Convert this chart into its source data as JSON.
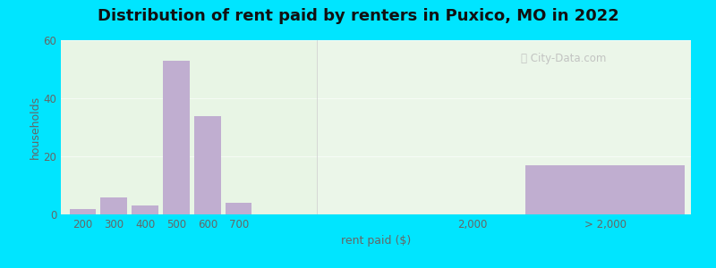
{
  "title": "Distribution of rent paid by renters in Puxico, MO in 2022",
  "xlabel": "rent paid ($)",
  "ylabel": "households",
  "bar_color": "#c0aed0",
  "outer_bg": "#00e5ff",
  "ylim": [
    0,
    60
  ],
  "yticks": [
    0,
    20,
    40,
    60
  ],
  "bars": [
    {
      "label": "200",
      "value": 2
    },
    {
      "label": "300",
      "value": 6
    },
    {
      "label": "400",
      "value": 3
    },
    {
      "label": "500",
      "value": 53
    },
    {
      "label": "600",
      "value": 34
    },
    {
      "label": "700",
      "value": 4
    }
  ],
  "special_bar": {
    "label": "> 2,000",
    "value": 17,
    "color": "#c0aed0"
  },
  "title_fontsize": 13,
  "axis_label_fontsize": 9,
  "tick_fontsize": 8.5,
  "tick_color": "#666666",
  "bg_color": "#e8f5e5",
  "grid_color": "#ddeedc"
}
